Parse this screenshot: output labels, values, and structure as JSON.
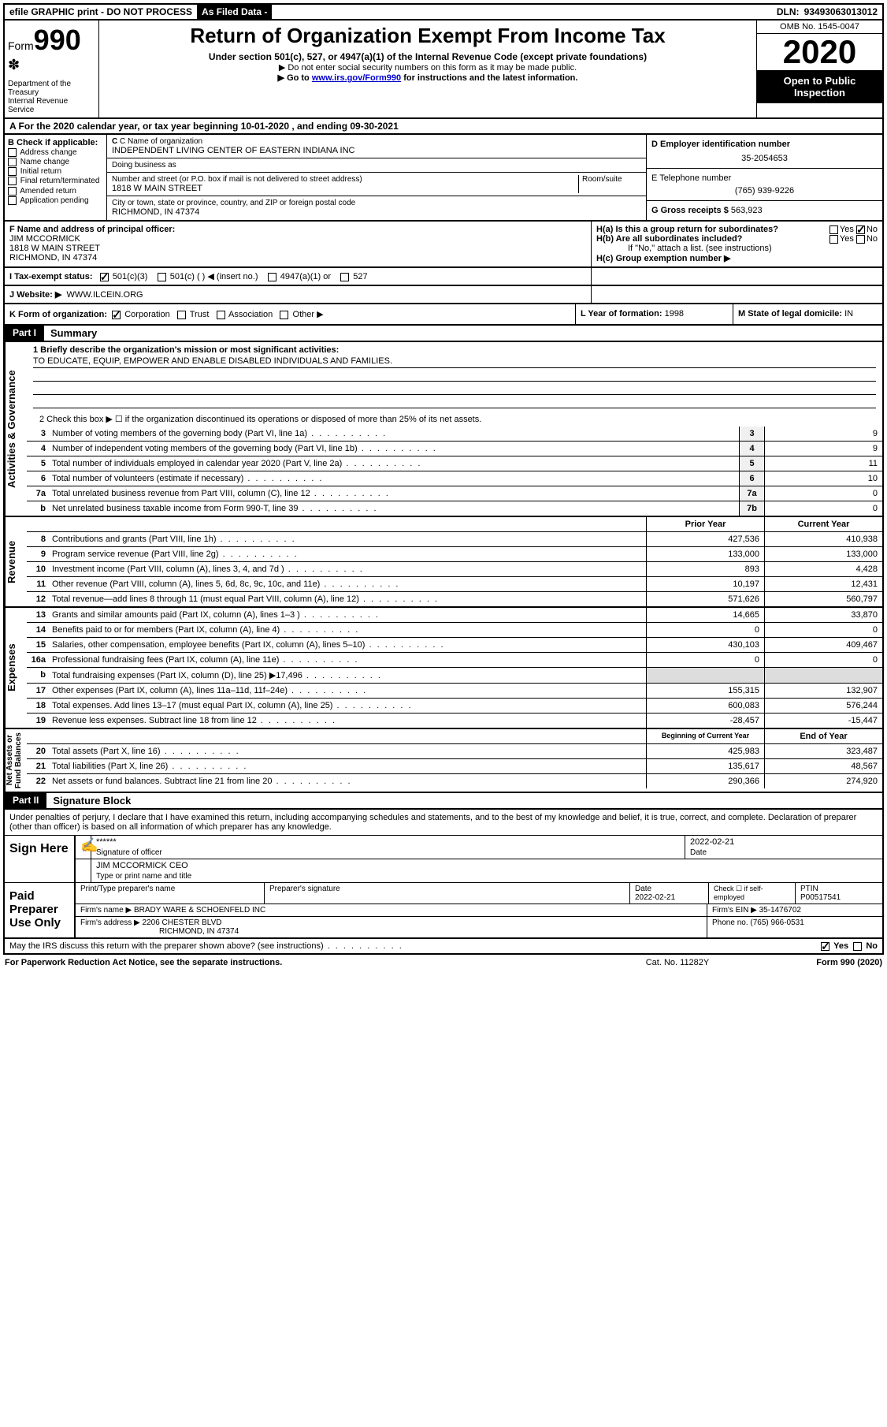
{
  "topbar": {
    "efile": "efile GRAPHIC print - DO NOT PROCESS",
    "asfiled": "As Filed Data -",
    "dln_label": "DLN:",
    "dln": "93493063013012"
  },
  "header": {
    "form_label": "Form",
    "form_num": "990",
    "dept": "Department of the Treasury\nInternal Revenue Service",
    "title": "Return of Organization Exempt From Income Tax",
    "sub": "Under section 501(c), 527, or 4947(a)(1) of the Internal Revenue Code (except private foundations)",
    "note1": "▶ Do not enter social security numbers on this form as it may be made public.",
    "note2_pre": "▶ Go to ",
    "note2_link": "www.irs.gov/Form990",
    "note2_post": " for instructions and the latest information.",
    "omb": "OMB No. 1545-0047",
    "year": "2020",
    "inspect": "Open to Public Inspection"
  },
  "row_a": "A   For the 2020 calendar year, or tax year beginning 10-01-2020   , and ending 09-30-2021",
  "b": {
    "title": "B Check if applicable:",
    "items": [
      "Address change",
      "Name change",
      "Initial return",
      "Final return/terminated",
      "Amended return",
      "Application pending"
    ]
  },
  "c": {
    "name_lbl": "C Name of organization",
    "name": "INDEPENDENT LIVING CENTER OF EASTERN INDIANA INC",
    "dba_lbl": "Doing business as",
    "dba": "",
    "street_lbl": "Number and street (or P.O. box if mail is not delivered to street address)",
    "room_lbl": "Room/suite",
    "street": "1818 W MAIN STREET",
    "city_lbl": "City or town, state or province, country, and ZIP or foreign postal code",
    "city": "RICHMOND, IN  47374"
  },
  "d": {
    "lbl": "D Employer identification number",
    "val": "35-2054653"
  },
  "e": {
    "lbl": "E Telephone number",
    "val": "(765) 939-9226"
  },
  "g": {
    "lbl": "G Gross receipts $",
    "val": "563,923"
  },
  "f": {
    "lbl": "F  Name and address of principal officer:",
    "name": "JIM MCCORMICK",
    "addr1": "1818 W MAIN STREET",
    "addr2": "RICHMOND, IN  47374"
  },
  "h": {
    "a": "H(a)  Is this a group return for subordinates?",
    "b": "H(b)  Are all subordinates included?",
    "b_note": "If \"No,\" attach a list. (see instructions)",
    "c": "H(c)  Group exemption number ▶",
    "yes": "Yes",
    "no": "No"
  },
  "i": {
    "lbl": "I   Tax-exempt status:",
    "o1": "501(c)(3)",
    "o2": "501(c) (  ) ◀ (insert no.)",
    "o3": "4947(a)(1) or",
    "o4": "527"
  },
  "j": {
    "lbl": "J   Website: ▶",
    "val": "WWW.ILCEIN.ORG"
  },
  "k": {
    "lbl": "K Form of organization:",
    "o1": "Corporation",
    "o2": "Trust",
    "o3": "Association",
    "o4": "Other ▶"
  },
  "l": {
    "lbl": "L Year of formation:",
    "val": "1998"
  },
  "m": {
    "lbl": "M State of legal domicile:",
    "val": "IN"
  },
  "part1": {
    "num": "Part I",
    "title": "Summary"
  },
  "mission": {
    "lbl": "1 Briefly describe the organization's mission or most significant activities:",
    "txt": "TO EDUCATE, EQUIP, EMPOWER AND ENABLE DISABLED INDIVIDUALS AND FAMILIES."
  },
  "line2": "2   Check this box ▶ ☐ if the organization discontinued its operations or disposed of more than 25% of its net assets.",
  "gov_lines": [
    {
      "n": "3",
      "t": "Number of voting members of the governing body (Part VI, line 1a)",
      "box": "3",
      "v": "9"
    },
    {
      "n": "4",
      "t": "Number of independent voting members of the governing body (Part VI, line 1b)",
      "box": "4",
      "v": "9"
    },
    {
      "n": "5",
      "t": "Total number of individuals employed in calendar year 2020 (Part V, line 2a)",
      "box": "5",
      "v": "11"
    },
    {
      "n": "6",
      "t": "Total number of volunteers (estimate if necessary)",
      "box": "6",
      "v": "10"
    },
    {
      "n": "7a",
      "t": "Total unrelated business revenue from Part VIII, column (C), line 12",
      "box": "7a",
      "v": "0"
    },
    {
      "n": "b",
      "t": "Net unrelated business taxable income from Form 990-T, line 39",
      "box": "7b",
      "v": "0"
    }
  ],
  "col_hdrs": {
    "prior": "Prior Year",
    "current": "Current Year",
    "beg": "Beginning of Current Year",
    "end": "End of Year"
  },
  "rev_lines": [
    {
      "n": "8",
      "t": "Contributions and grants (Part VIII, line 1h)",
      "p": "427,536",
      "c": "410,938"
    },
    {
      "n": "9",
      "t": "Program service revenue (Part VIII, line 2g)",
      "p": "133,000",
      "c": "133,000"
    },
    {
      "n": "10",
      "t": "Investment income (Part VIII, column (A), lines 3, 4, and 7d )",
      "p": "893",
      "c": "4,428"
    },
    {
      "n": "11",
      "t": "Other revenue (Part VIII, column (A), lines 5, 6d, 8c, 9c, 10c, and 11e)",
      "p": "10,197",
      "c": "12,431"
    },
    {
      "n": "12",
      "t": "Total revenue—add lines 8 through 11 (must equal Part VIII, column (A), line 12)",
      "p": "571,626",
      "c": "560,797"
    }
  ],
  "exp_lines": [
    {
      "n": "13",
      "t": "Grants and similar amounts paid (Part IX, column (A), lines 1–3 )",
      "p": "14,665",
      "c": "33,870"
    },
    {
      "n": "14",
      "t": "Benefits paid to or for members (Part IX, column (A), line 4)",
      "p": "0",
      "c": "0"
    },
    {
      "n": "15",
      "t": "Salaries, other compensation, employee benefits (Part IX, column (A), lines 5–10)",
      "p": "430,103",
      "c": "409,467"
    },
    {
      "n": "16a",
      "t": "Professional fundraising fees (Part IX, column (A), line 11e)",
      "p": "0",
      "c": "0"
    },
    {
      "n": "b",
      "t": "Total fundraising expenses (Part IX, column (D), line 25) ▶17,496",
      "p": "",
      "c": ""
    },
    {
      "n": "17",
      "t": "Other expenses (Part IX, column (A), lines 11a–11d, 11f–24e)",
      "p": "155,315",
      "c": "132,907"
    },
    {
      "n": "18",
      "t": "Total expenses. Add lines 13–17 (must equal Part IX, column (A), line 25)",
      "p": "600,083",
      "c": "576,244"
    },
    {
      "n": "19",
      "t": "Revenue less expenses. Subtract line 18 from line 12",
      "p": "-28,457",
      "c": "-15,447"
    }
  ],
  "net_lines": [
    {
      "n": "20",
      "t": "Total assets (Part X, line 16)",
      "p": "425,983",
      "c": "323,487"
    },
    {
      "n": "21",
      "t": "Total liabilities (Part X, line 26)",
      "p": "135,617",
      "c": "48,567"
    },
    {
      "n": "22",
      "t": "Net assets or fund balances. Subtract line 21 from line 20",
      "p": "290,366",
      "c": "274,920"
    }
  ],
  "vtabs": {
    "gov": "Activities & Governance",
    "rev": "Revenue",
    "exp": "Expenses",
    "net": "Net Assets or\nFund Balances"
  },
  "part2": {
    "num": "Part II",
    "title": "Signature Block"
  },
  "perjury": "Under penalties of perjury, I declare that I have examined this return, including accompanying schedules and statements, and to the best of my knowledge and belief, it is true, correct, and complete. Declaration of preparer (other than officer) is based on all information of which preparer has any knowledge.",
  "sign": {
    "lbl": "Sign Here",
    "stars": "******",
    "sig_lbl": "Signature of officer",
    "date": "2022-02-21",
    "date_lbl": "Date",
    "name": "JIM MCCORMICK CEO",
    "name_lbl": "Type or print name and title"
  },
  "paid": {
    "lbl": "Paid Preparer Use Only",
    "h1": "Print/Type preparer's name",
    "h2": "Preparer's signature",
    "h3": "Date",
    "date": "2022-02-21",
    "h4": "Check ☐ if self-employed",
    "h5": "PTIN",
    "ptin": "P00517541",
    "firm_name_lbl": "Firm's name    ▶",
    "firm_name": "BRADY WARE & SCHOENFELD INC",
    "firm_ein_lbl": "Firm's EIN ▶",
    "firm_ein": "35-1476702",
    "firm_addr_lbl": "Firm's address ▶",
    "firm_addr1": "2206 CHESTER BLVD",
    "firm_addr2": "RICHMOND, IN  47374",
    "phone_lbl": "Phone no.",
    "phone": "(765) 966-0531"
  },
  "discuss": "May the IRS discuss this return with the preparer shown above? (see instructions)",
  "footer": {
    "l": "For Paperwork Reduction Act Notice, see the separate instructions.",
    "m": "Cat. No. 11282Y",
    "r": "Form 990 (2020)"
  }
}
